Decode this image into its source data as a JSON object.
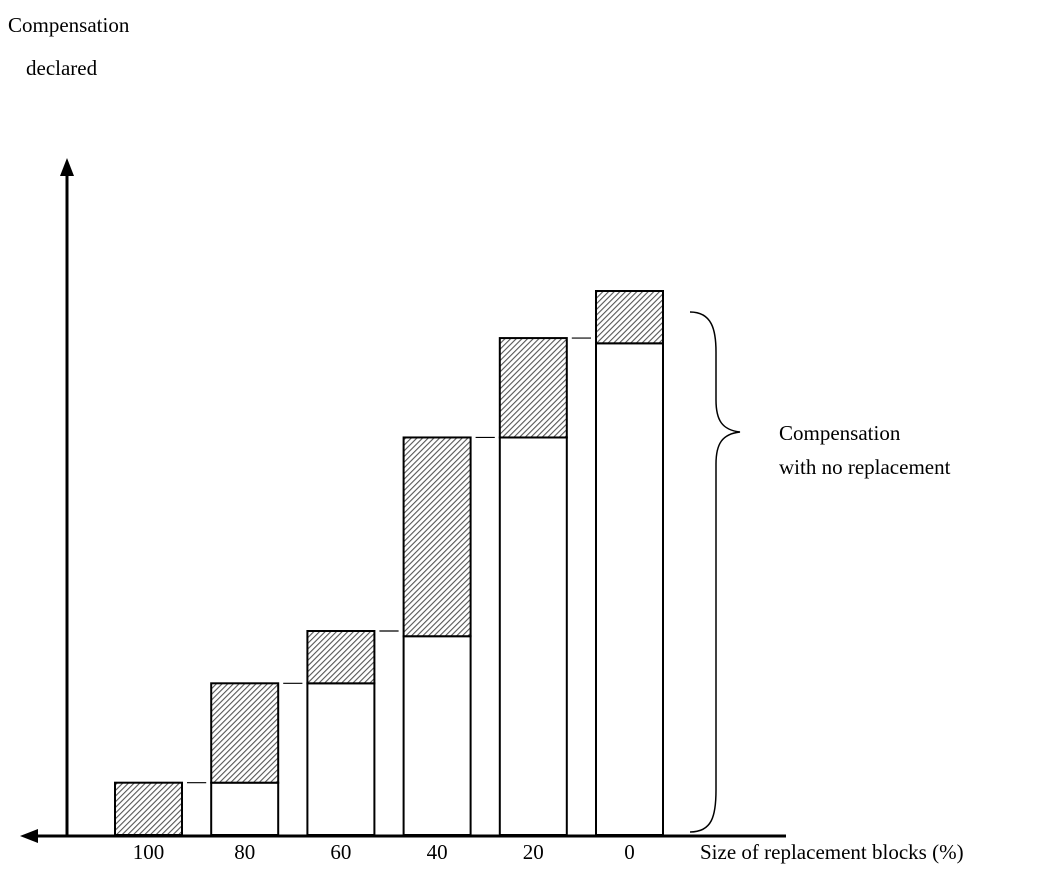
{
  "chart_data": {
    "type": "bar",
    "stacked": true,
    "ylabel_lines": [
      "Compensation",
      "declared"
    ],
    "xlabel": "Size of replacement blocks (%)",
    "categories": [
      "100",
      "80",
      "60",
      "40",
      "20",
      "0"
    ],
    "series": [
      {
        "pattern": "none",
        "values": [
          0,
          10,
          29,
          38,
          76,
          94
        ]
      },
      {
        "pattern": "hatched",
        "values": [
          10,
          19,
          10,
          38,
          19,
          10
        ]
      }
    ],
    "ylim": [
      0,
      104
    ],
    "connector_lines": true,
    "brace_annotation_lines": [
      "Compensation",
      "with no replacement"
    ],
    "grid": false,
    "colors": {
      "axis": "#000000",
      "bar_fill": "#ffffff",
      "hatch": "#555555",
      "outline": "#000000"
    }
  }
}
